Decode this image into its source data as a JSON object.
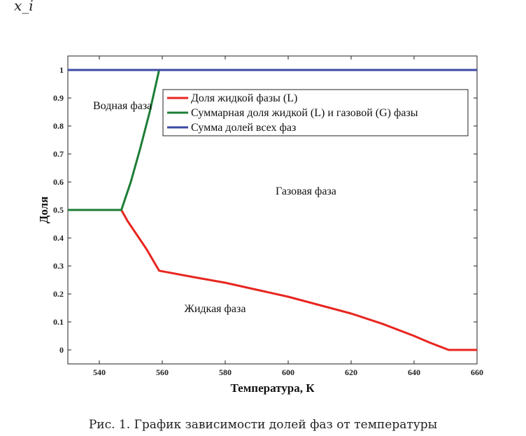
{
  "corner_label": "x_i",
  "caption": "Рис. 1. График зависимости долей фаз от температуры",
  "chart_data": {
    "type": "line",
    "xlabel": "Температура, К",
    "ylabel": "Доля",
    "xlim": [
      530,
      660
    ],
    "ylim": [
      -0.05,
      1.05
    ],
    "xticks": [
      540,
      560,
      580,
      600,
      620,
      640,
      660
    ],
    "yticks": [
      0,
      0.1,
      0.2,
      0.3,
      0.4,
      0.5,
      0.6,
      0.7,
      0.8,
      0.9,
      1
    ],
    "ytick_labels": [
      "0",
      "0.1",
      "0.2",
      "0.3",
      "0.4",
      "0.5",
      "0.6",
      "0.7",
      "0.8",
      "0.9",
      "1"
    ],
    "grid": false,
    "legend_position": "top-right",
    "series": [
      {
        "name": "Доля жидкой фазы (L)",
        "color": "#e8251f",
        "x": [
          547,
          549,
          552,
          555,
          559,
          570,
          580,
          590,
          600,
          610,
          620,
          630,
          640,
          645,
          648,
          651,
          653,
          660
        ],
        "y": [
          0.5,
          0.46,
          0.41,
          0.36,
          0.283,
          0.26,
          0.24,
          0.215,
          0.19,
          0.16,
          0.13,
          0.093,
          0.05,
          0.026,
          0.013,
          0.0,
          0.0,
          0.0
        ]
      },
      {
        "name": "Суммарная доля жидкой (L) и газовой (G) фазы",
        "color": "#1d7d35",
        "x": [
          530,
          547,
          550,
          553,
          556,
          559
        ],
        "y": [
          0.5,
          0.5,
          0.6,
          0.72,
          0.85,
          1.0
        ]
      },
      {
        "name": "Сумма долей всех фаз",
        "color": "#3b4aa3",
        "x": [
          530,
          660
        ],
        "y": [
          1.0,
          1.0
        ]
      }
    ],
    "annotations": [
      {
        "text": "Водная фаза",
        "x": 538,
        "y": 0.86
      },
      {
        "text": "Газовая фаза",
        "x": 596,
        "y": 0.555
      },
      {
        "text": "Жидкая фаза",
        "x": 567,
        "y": 0.135
      }
    ]
  }
}
